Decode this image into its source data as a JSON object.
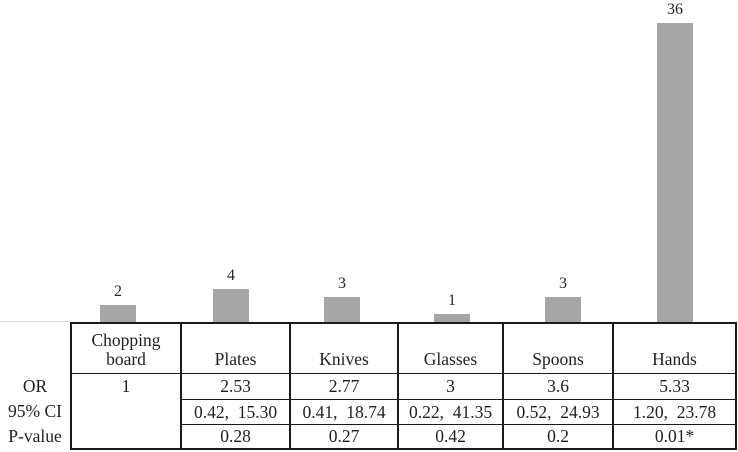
{
  "figure": {
    "background": "#ffffff"
  },
  "chart_data": {
    "type": "bar",
    "title": "",
    "xlabel": "",
    "ylabel": "",
    "categories": [
      "Chopping board",
      "Plates",
      "Knives",
      "Glasses",
      "Spoons",
      "Hands"
    ],
    "values": [
      2,
      4,
      3,
      1,
      3,
      36
    ],
    "bar_labels": [
      "2",
      "4",
      "3",
      "1",
      "3",
      "36"
    ],
    "ylim": [
      0,
      36
    ],
    "grid": false,
    "legend": false,
    "bar_color": "#a6a6a6",
    "axis_line_color": "#d9d9d9",
    "label_color": "#262626"
  },
  "table": {
    "border_color": "#1a1a1a",
    "row_labels": [
      "OR",
      "95% CI",
      "P-value"
    ],
    "columns": [
      {
        "header": "Chopping board",
        "or": "1",
        "ci": "",
        "p": ""
      },
      {
        "header": "Plates",
        "or": "2.53",
        "ci": "0.42,  15.30",
        "p": "0.28"
      },
      {
        "header": "Knives",
        "or": "2.77",
        "ci": "0.41,  18.74",
        "p": "0.27"
      },
      {
        "header": "Glasses",
        "or": "3",
        "ci": "0.22,  41.35",
        "p": "0.42"
      },
      {
        "header": "Spoons",
        "or": "3.6",
        "ci": "0.52,  24.93",
        "p": "0.2"
      },
      {
        "header": "Hands",
        "or": "5.33",
        "ci": "1.20,  23.78",
        "p": "0.01*"
      }
    ]
  }
}
